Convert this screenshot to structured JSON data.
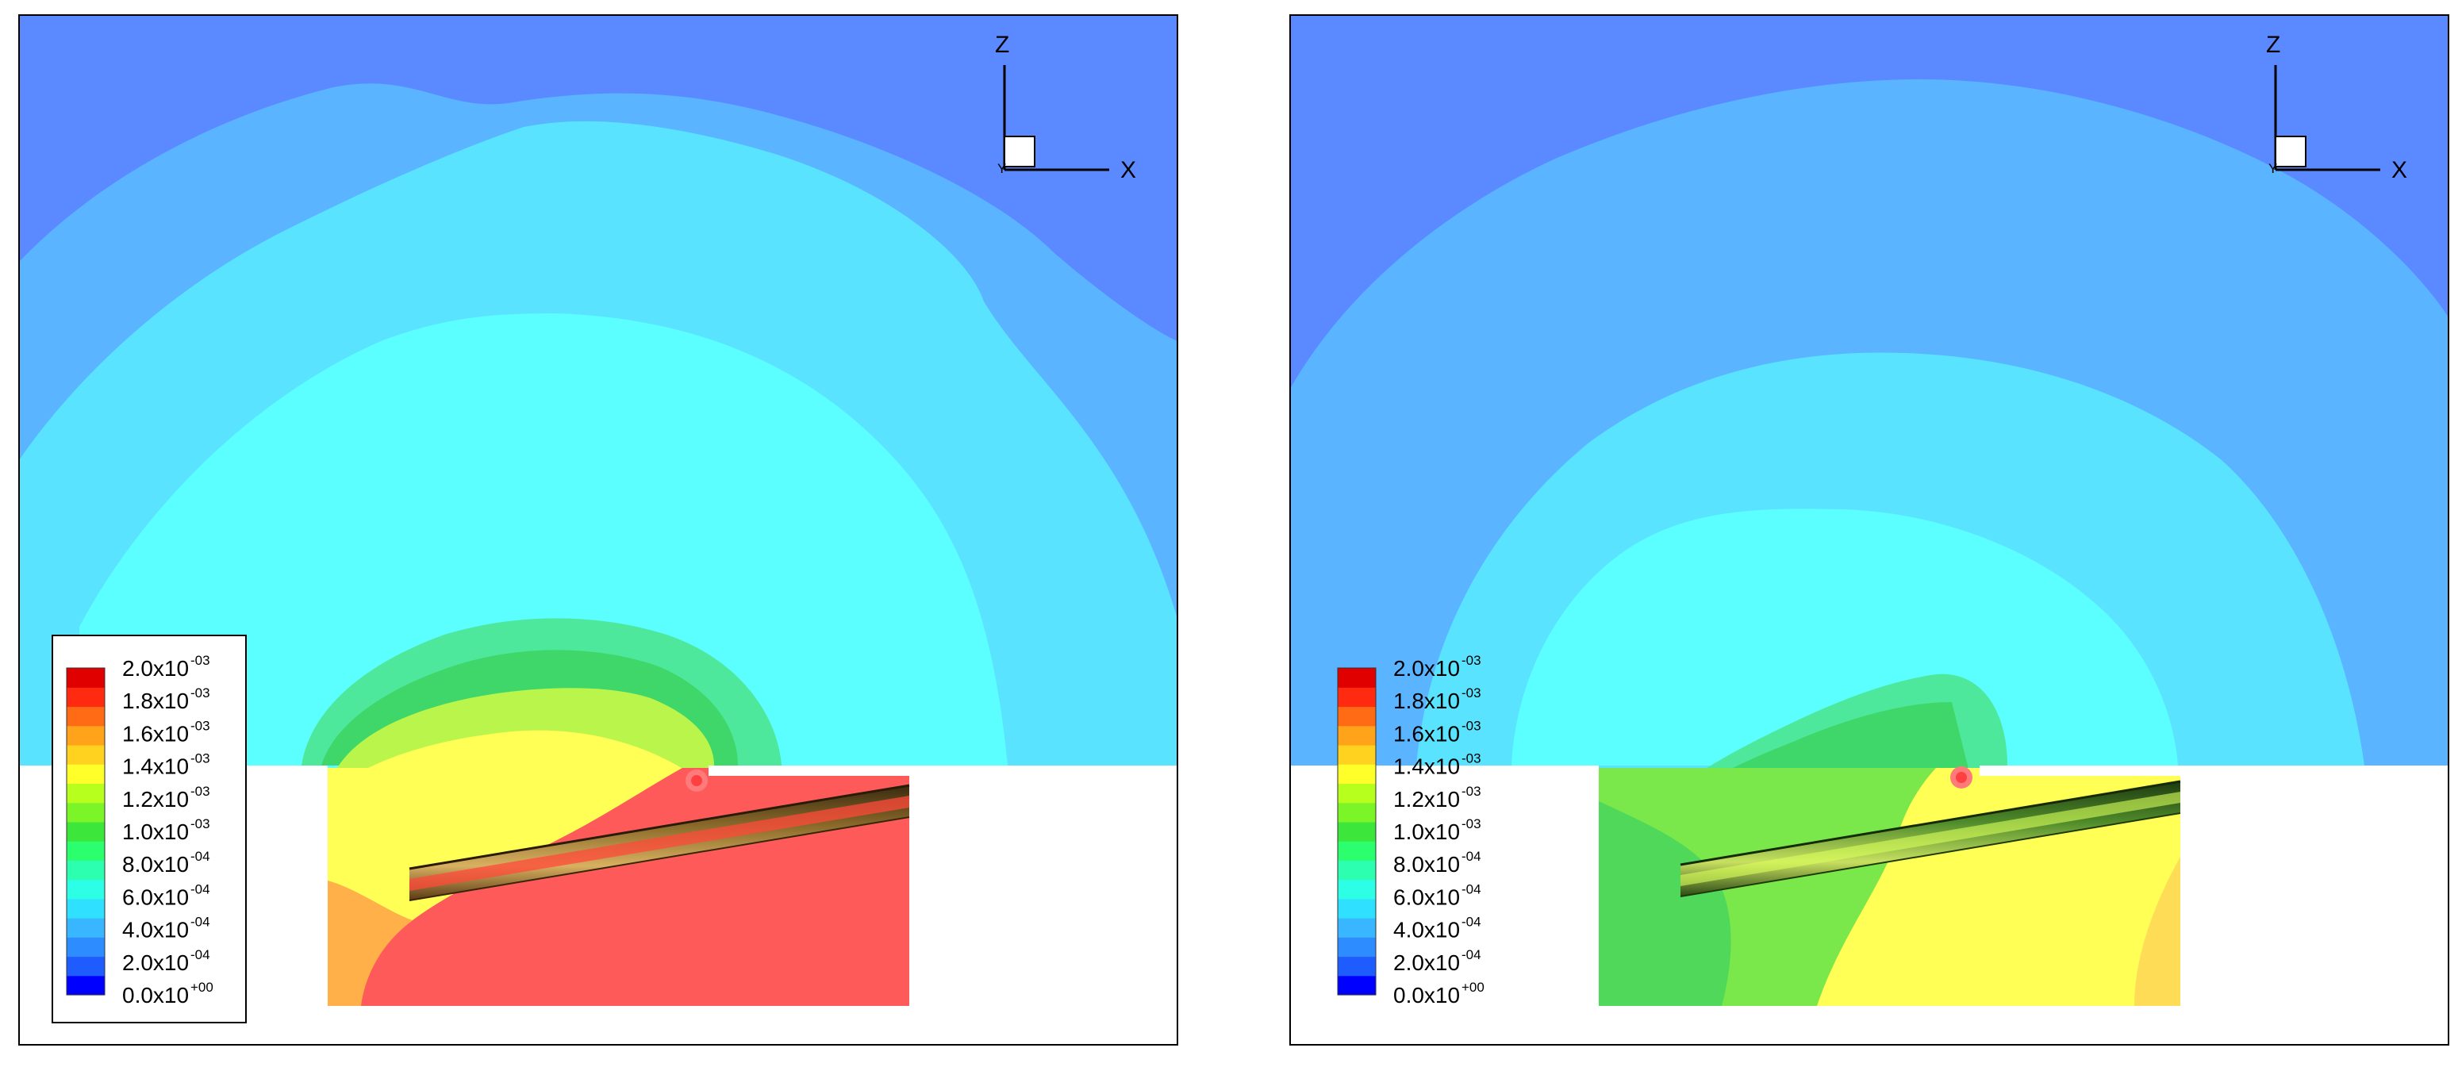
{
  "colors": {
    "outer": "#5b89ff",
    "band1": "#5ab4ff",
    "band2": "#5ae3ff",
    "band3": "#5cffff",
    "green_light": "#4ee89c",
    "green": "#3fd66a",
    "yellow_green": "#b9f54a",
    "yellow": "#ffff55",
    "orange": "#ffb048",
    "red": "#ff5a5a",
    "hole": "#ffffff",
    "frame": "#000000"
  },
  "colormap": [
    "#0000ff",
    "#1e5cff",
    "#2d8cff",
    "#38b6ff",
    "#30e0ff",
    "#2dffe6",
    "#2dffb0",
    "#2cff6e",
    "#3ce63a",
    "#7cf528",
    "#b7ff1c",
    "#ffff2a",
    "#ffd21f",
    "#ffa41a",
    "#ff6a15",
    "#ff2a10",
    "#e00000"
  ],
  "legend": {
    "labels": [
      {
        "mantissa": "2.0x10",
        "exponent": "-03"
      },
      {
        "mantissa": "1.8x10",
        "exponent": "-03"
      },
      {
        "mantissa": "1.6x10",
        "exponent": "-03"
      },
      {
        "mantissa": "1.4x10",
        "exponent": "-03"
      },
      {
        "mantissa": "1.2x10",
        "exponent": "-03"
      },
      {
        "mantissa": "1.0x10",
        "exponent": "-03"
      },
      {
        "mantissa": "8.0x10",
        "exponent": "-04"
      },
      {
        "mantissa": "6.0x10",
        "exponent": "-04"
      },
      {
        "mantissa": "4.0x10",
        "exponent": "-04"
      },
      {
        "mantissa": "2.0x10",
        "exponent": "-04"
      },
      {
        "mantissa": "0.0x10",
        "exponent": "+00"
      }
    ]
  },
  "axes": {
    "vertical_label": "Z",
    "horizontal_label": "X",
    "out_label": "Y"
  }
}
